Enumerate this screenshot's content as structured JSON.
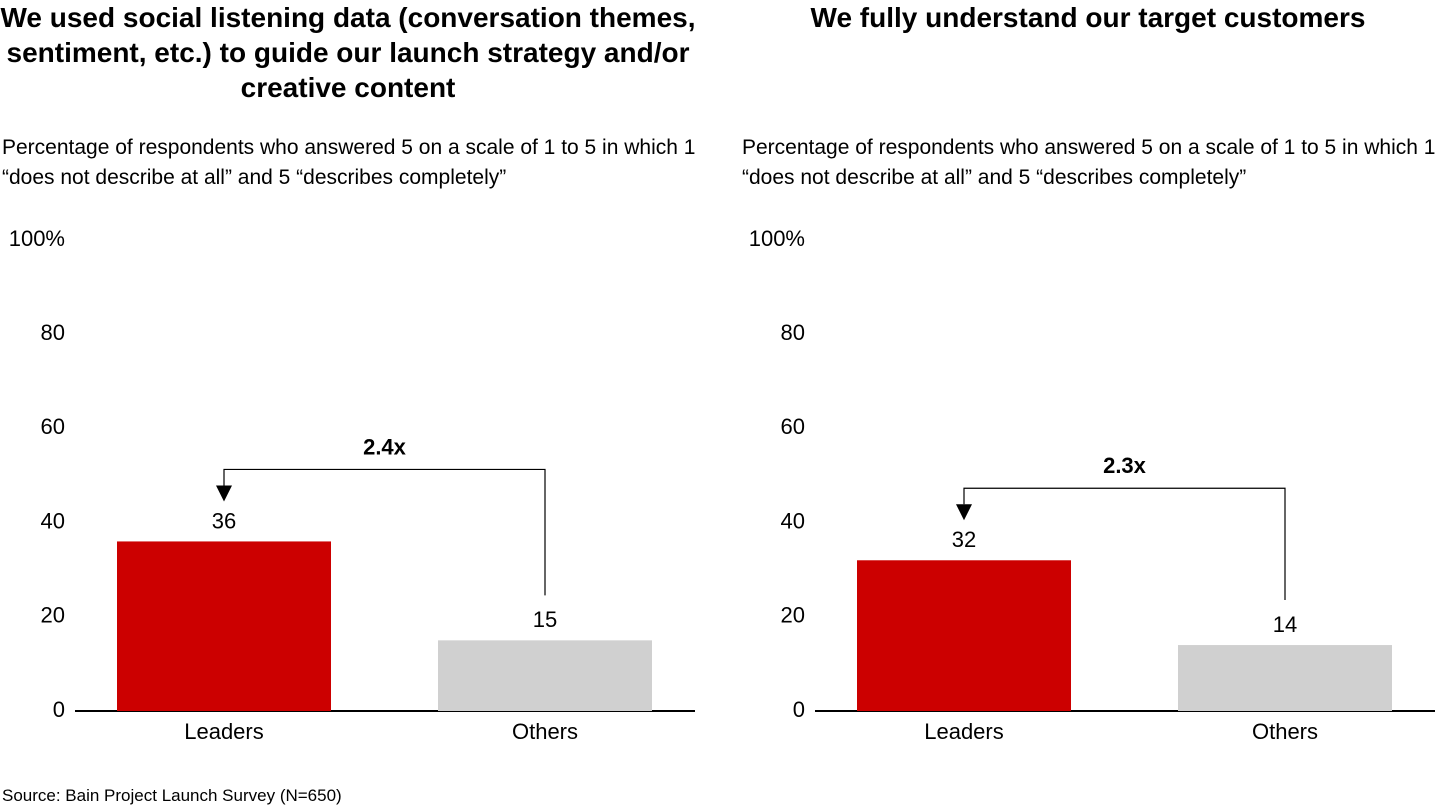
{
  "chart_data": [
    {
      "type": "bar",
      "title": "We used social listening data (conversation themes, sentiment, etc.) to guide our launch strategy and/or creative content",
      "subtitle": "Percentage of respondents who answered 5 on a scale of 1 to 5 in which 1 “does not describe at all” and 5 “describes completely”",
      "categories": [
        "Leaders",
        "Others"
      ],
      "values": [
        36,
        15
      ],
      "colors": [
        "#cc0000",
        "#d0d0d0"
      ],
      "ylim": [
        0,
        100
      ],
      "yticks": [
        0,
        20,
        40,
        60,
        80,
        {
          "value": 100,
          "label": "100%"
        }
      ],
      "annotation": "2.4x"
    },
    {
      "type": "bar",
      "title": "We fully understand our target customers",
      "subtitle": "Percentage of respondents who answered 5 on a scale of 1 to 5 in which 1 “does not describe at all” and 5 “describes completely”",
      "categories": [
        "Leaders",
        "Others"
      ],
      "values": [
        32,
        14
      ],
      "colors": [
        "#cc0000",
        "#d0d0d0"
      ],
      "ylim": [
        0,
        100
      ],
      "yticks": [
        0,
        20,
        40,
        60,
        80,
        {
          "value": 100,
          "label": "100%"
        }
      ],
      "annotation": "2.3x"
    }
  ],
  "source": "Source: Bain Project Launch Survey (N=650)"
}
